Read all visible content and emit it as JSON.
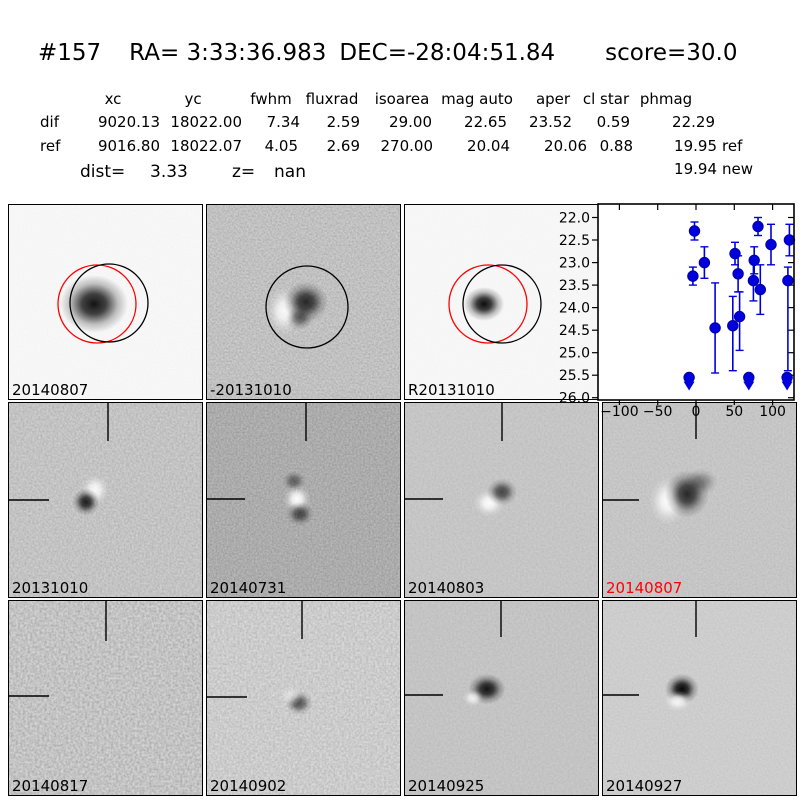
{
  "header": {
    "candidate_id": "#157",
    "ra": "RA= 3:33:36.983",
    "dec": "DEC=-28:04:51.84",
    "score": "score=30.0"
  },
  "stats": {
    "columns": [
      "xc",
      "yc",
      "fwhm",
      "fluxrad",
      "isoarea",
      "mag auto",
      "aper",
      "cl star",
      "phmag"
    ],
    "rows": [
      {
        "label": "dif",
        "values": [
          "9020.13",
          "18022.00",
          "7.34",
          "2.59",
          "29.00",
          "22.65",
          "23.52",
          "0.59",
          "22.29"
        ],
        "suffix": ""
      },
      {
        "label": "ref",
        "values": [
          "9016.80",
          "18022.07",
          "4.05",
          "2.69",
          "270.00",
          "20.04",
          "20.06",
          "0.88",
          "19.95"
        ],
        "suffix": "ref"
      }
    ],
    "extra_phmag": {
      "value": "19.94",
      "suffix": "new"
    },
    "dist": {
      "label": "dist=",
      "value": "3.33"
    },
    "z": {
      "label": "z=",
      "value": "nan"
    }
  },
  "cutouts": {
    "row1": [
      {
        "label": "20140807",
        "label_color": "#000000",
        "aperture_colors": [
          "#ff0000",
          "#000000"
        ]
      },
      {
        "label": "-20131010",
        "label_color": "#000000",
        "aperture_colors": [
          "#000000"
        ]
      },
      {
        "label": "R20131010",
        "label_color": "#000000",
        "aperture_colors": [
          "#ff0000",
          "#000000"
        ]
      }
    ],
    "row2": [
      {
        "label": "20131010",
        "label_color": "#000000"
      },
      {
        "label": "20140731",
        "label_color": "#000000"
      },
      {
        "label": "20140803",
        "label_color": "#000000"
      },
      {
        "label": "20140807",
        "label_color": "#ff0000"
      }
    ],
    "row3": [
      {
        "label": "20140817",
        "label_color": "#000000"
      },
      {
        "label": "20140902",
        "label_color": "#000000"
      },
      {
        "label": "20140925",
        "label_color": "#000000"
      },
      {
        "label": "20140927",
        "label_color": "#000000"
      }
    ]
  },
  "chart_data": {
    "type": "scatter",
    "title": "",
    "xlabel": "",
    "ylabel": "",
    "xlim": [
      -128,
      128
    ],
    "ylim": [
      26.05,
      21.7
    ],
    "xticks": [
      -100,
      -50,
      0,
      50,
      100
    ],
    "yticks": [
      22.0,
      22.5,
      23.0,
      23.5,
      24.0,
      24.5,
      25.0,
      25.5,
      26.0
    ],
    "grid": false,
    "legend": null,
    "marker_color": "#0000dd",
    "points": [
      {
        "x": -9,
        "y": 25.55,
        "limit": true
      },
      {
        "x": -4,
        "y": 23.3,
        "err_lo": 0.2,
        "err_hi": 0.2
      },
      {
        "x": -2,
        "y": 22.3,
        "err_lo": 0.2,
        "err_hi": 0.2
      },
      {
        "x": 11,
        "y": 23.0,
        "err_lo": 0.35,
        "err_hi": 0.35
      },
      {
        "x": 25,
        "y": 24.45,
        "err_lo": 1.0,
        "err_hi": 1.0
      },
      {
        "x": 48,
        "y": 24.4,
        "err_lo": 1.0,
        "err_hi": 0.65
      },
      {
        "x": 51,
        "y": 22.8,
        "err_lo": 0.25,
        "err_hi": 0.25
      },
      {
        "x": 55,
        "y": 23.25,
        "err_lo": 0.4,
        "err_hi": 0.4
      },
      {
        "x": 57,
        "y": 24.2,
        "err_lo": 0.75,
        "err_hi": 0.55
      },
      {
        "x": 69,
        "y": 25.55,
        "limit": true
      },
      {
        "x": 75,
        "y": 23.4,
        "err_lo": 0.45,
        "err_hi": 0.45
      },
      {
        "x": 76,
        "y": 22.95,
        "err_lo": 0.3,
        "err_hi": 0.3
      },
      {
        "x": 81,
        "y": 22.2,
        "err_lo": 0.2,
        "err_hi": 0.2
      },
      {
        "x": 84,
        "y": 23.6,
        "err_lo": 0.55,
        "err_hi": 0.55
      },
      {
        "x": 98,
        "y": 22.6,
        "err_lo": 0.45,
        "err_hi": 0.45
      },
      {
        "x": 119,
        "y": 25.55,
        "limit": true
      },
      {
        "x": 120,
        "y": 23.4,
        "err_lo": 2.0,
        "err_hi": 0.3
      },
      {
        "x": 122,
        "y": 22.5,
        "err_lo": 0.35,
        "err_hi": 0.35
      }
    ]
  }
}
